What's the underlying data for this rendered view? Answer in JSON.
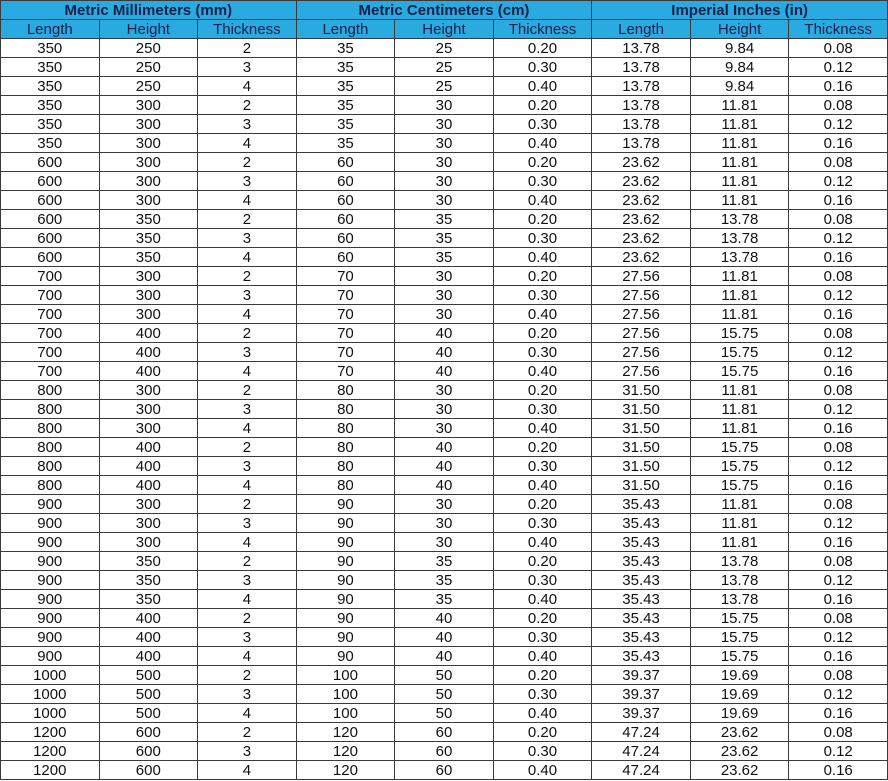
{
  "colors": {
    "header_bg": "#29abe2",
    "header_text": "#14204a",
    "border": "#3a3a3a"
  },
  "groups": [
    "Metric Millimeters (mm)",
    "Metric Centimeters (cm)",
    "Imperial Inches (in)"
  ],
  "columns": [
    "Length",
    "Height",
    "Thickness",
    "Length",
    "Height",
    "Thickness",
    "Length",
    "Height",
    "Thickness"
  ],
  "rows": [
    [
      "350",
      "250",
      "2",
      "35",
      "25",
      "0.20",
      "13.78",
      "9.84",
      "0.08"
    ],
    [
      "350",
      "250",
      "3",
      "35",
      "25",
      "0.30",
      "13.78",
      "9.84",
      "0.12"
    ],
    [
      "350",
      "250",
      "4",
      "35",
      "25",
      "0.40",
      "13.78",
      "9.84",
      "0.16"
    ],
    [
      "350",
      "300",
      "2",
      "35",
      "30",
      "0.20",
      "13.78",
      "11.81",
      "0.08"
    ],
    [
      "350",
      "300",
      "3",
      "35",
      "30",
      "0.30",
      "13.78",
      "11.81",
      "0.12"
    ],
    [
      "350",
      "300",
      "4",
      "35",
      "30",
      "0.40",
      "13.78",
      "11.81",
      "0.16"
    ],
    [
      "600",
      "300",
      "2",
      "60",
      "30",
      "0.20",
      "23.62",
      "11.81",
      "0.08"
    ],
    [
      "600",
      "300",
      "3",
      "60",
      "30",
      "0.30",
      "23.62",
      "11.81",
      "0.12"
    ],
    [
      "600",
      "300",
      "4",
      "60",
      "30",
      "0.40",
      "23.62",
      "11.81",
      "0.16"
    ],
    [
      "600",
      "350",
      "2",
      "60",
      "35",
      "0.20",
      "23.62",
      "13.78",
      "0.08"
    ],
    [
      "600",
      "350",
      "3",
      "60",
      "35",
      "0.30",
      "23.62",
      "13.78",
      "0.12"
    ],
    [
      "600",
      "350",
      "4",
      "60",
      "35",
      "0.40",
      "23.62",
      "13.78",
      "0.16"
    ],
    [
      "700",
      "300",
      "2",
      "70",
      "30",
      "0.20",
      "27.56",
      "11.81",
      "0.08"
    ],
    [
      "700",
      "300",
      "3",
      "70",
      "30",
      "0.30",
      "27.56",
      "11.81",
      "0.12"
    ],
    [
      "700",
      "300",
      "4",
      "70",
      "30",
      "0.40",
      "27.56",
      "11.81",
      "0.16"
    ],
    [
      "700",
      "400",
      "2",
      "70",
      "40",
      "0.20",
      "27.56",
      "15.75",
      "0.08"
    ],
    [
      "700",
      "400",
      "3",
      "70",
      "40",
      "0.30",
      "27.56",
      "15.75",
      "0.12"
    ],
    [
      "700",
      "400",
      "4",
      "70",
      "40",
      "0.40",
      "27.56",
      "15.75",
      "0.16"
    ],
    [
      "800",
      "300",
      "2",
      "80",
      "30",
      "0.20",
      "31.50",
      "11.81",
      "0.08"
    ],
    [
      "800",
      "300",
      "3",
      "80",
      "30",
      "0.30",
      "31.50",
      "11.81",
      "0.12"
    ],
    [
      "800",
      "300",
      "4",
      "80",
      "30",
      "0.40",
      "31.50",
      "11.81",
      "0.16"
    ],
    [
      "800",
      "400",
      "2",
      "80",
      "40",
      "0.20",
      "31.50",
      "15.75",
      "0.08"
    ],
    [
      "800",
      "400",
      "3",
      "80",
      "40",
      "0.30",
      "31.50",
      "15.75",
      "0.12"
    ],
    [
      "800",
      "400",
      "4",
      "80",
      "40",
      "0.40",
      "31.50",
      "15.75",
      "0.16"
    ],
    [
      "900",
      "300",
      "2",
      "90",
      "30",
      "0.20",
      "35.43",
      "11.81",
      "0.08"
    ],
    [
      "900",
      "300",
      "3",
      "90",
      "30",
      "0.30",
      "35.43",
      "11.81",
      "0.12"
    ],
    [
      "900",
      "300",
      "4",
      "90",
      "30",
      "0.40",
      "35.43",
      "11.81",
      "0.16"
    ],
    [
      "900",
      "350",
      "2",
      "90",
      "35",
      "0.20",
      "35.43",
      "13.78",
      "0.08"
    ],
    [
      "900",
      "350",
      "3",
      "90",
      "35",
      "0.30",
      "35.43",
      "13.78",
      "0.12"
    ],
    [
      "900",
      "350",
      "4",
      "90",
      "35",
      "0.40",
      "35.43",
      "13.78",
      "0.16"
    ],
    [
      "900",
      "400",
      "2",
      "90",
      "40",
      "0.20",
      "35.43",
      "15.75",
      "0.08"
    ],
    [
      "900",
      "400",
      "3",
      "90",
      "40",
      "0.30",
      "35.43",
      "15.75",
      "0.12"
    ],
    [
      "900",
      "400",
      "4",
      "90",
      "40",
      "0.40",
      "35.43",
      "15.75",
      "0.16"
    ],
    [
      "1000",
      "500",
      "2",
      "100",
      "50",
      "0.20",
      "39.37",
      "19.69",
      "0.08"
    ],
    [
      "1000",
      "500",
      "3",
      "100",
      "50",
      "0.30",
      "39.37",
      "19.69",
      "0.12"
    ],
    [
      "1000",
      "500",
      "4",
      "100",
      "50",
      "0.40",
      "39.37",
      "19.69",
      "0.16"
    ],
    [
      "1200",
      "600",
      "2",
      "120",
      "60",
      "0.20",
      "47.24",
      "23.62",
      "0.08"
    ],
    [
      "1200",
      "600",
      "3",
      "120",
      "60",
      "0.30",
      "47.24",
      "23.62",
      "0.12"
    ],
    [
      "1200",
      "600",
      "4",
      "120",
      "60",
      "0.40",
      "47.24",
      "23.62",
      "0.16"
    ]
  ]
}
